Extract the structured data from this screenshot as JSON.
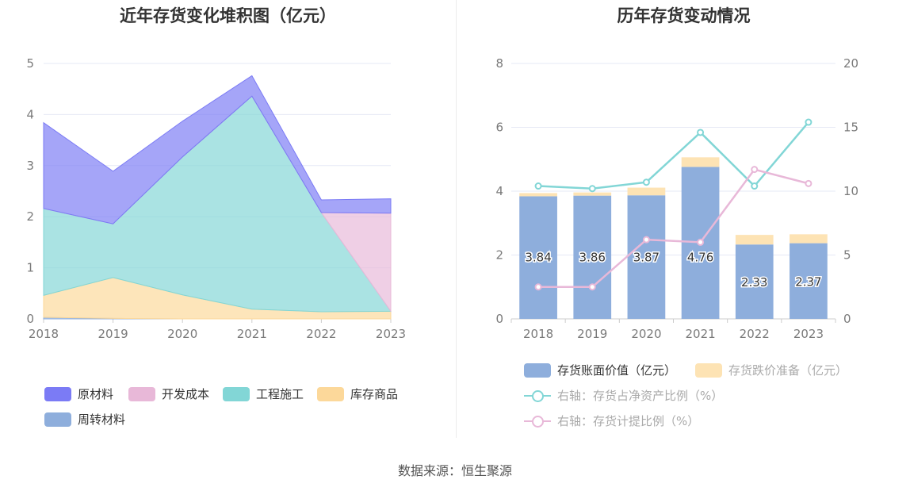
{
  "colors": {
    "raw_materials": "#7b7bf5",
    "development_cost": "#e8b8d8",
    "engineering": "#82d6d6",
    "goods": "#fcd89a",
    "turnover_materials": "#8eaedc",
    "book_value": "#8eaedc",
    "impairment": "#fde3b4",
    "net_asset_ratio_line": "#82d6d6",
    "provision_ratio_line": "#e8b8d8"
  },
  "source": "数据来源：恒生聚源",
  "chart_data": [
    {
      "type": "area",
      "title": "近年存货变化堆积图（亿元）",
      "categories": [
        "2018",
        "2019",
        "2020",
        "2021",
        "2022",
        "2023"
      ],
      "ylim": [
        0,
        5
      ],
      "yticks": [
        "0",
        "1",
        "2",
        "3",
        "4",
        "5"
      ],
      "grid": true,
      "legend_position": "bottom-left",
      "series": [
        {
          "name": "原材料",
          "values": [
            1.68,
            1.03,
            0.7,
            0.4,
            0.25,
            0.28
          ]
        },
        {
          "name": "开发成本",
          "values": [
            0.0,
            0.0,
            0.0,
            0.0,
            0.0,
            1.92
          ]
        },
        {
          "name": "工程施工",
          "values": [
            1.7,
            1.05,
            2.7,
            4.17,
            1.94,
            0.0
          ]
        },
        {
          "name": "库存商品",
          "values": [
            0.43,
            0.8,
            0.47,
            0.19,
            0.14,
            0.15
          ]
        },
        {
          "name": "周转材料",
          "values": [
            0.03,
            0.01,
            0.0,
            0.0,
            0.0,
            0.0
          ]
        }
      ]
    },
    {
      "type": "bar",
      "title": "历年存货变动情况",
      "categories": [
        "2018",
        "2019",
        "2020",
        "2021",
        "2022",
        "2023"
      ],
      "ylim": [
        0,
        8
      ],
      "yticks": [
        "0",
        "2",
        "4",
        "6",
        "8"
      ],
      "y2lim": [
        0,
        20
      ],
      "y2ticks": [
        "0",
        "5",
        "10",
        "15",
        "20"
      ],
      "grid": true,
      "legend_position": "bottom-left",
      "series": [
        {
          "name": "存货账面价值（亿元）",
          "kind": "bar",
          "values": [
            3.84,
            3.86,
            3.87,
            4.76,
            2.33,
            2.37
          ],
          "labels": [
            "3.84",
            "3.86",
            "3.87",
            "4.76",
            "2.33",
            "2.37"
          ]
        },
        {
          "name": "存货跌价准备（亿元）",
          "kind": "bar",
          "values": [
            0.1,
            0.1,
            0.24,
            0.3,
            0.3,
            0.28
          ]
        },
        {
          "name": "右轴：存货占净资产比例（%）",
          "kind": "line",
          "axis": "right",
          "values": [
            10.4,
            10.2,
            10.7,
            14.6,
            10.4,
            15.4
          ]
        },
        {
          "name": "右轴：存货计提比例（%）",
          "kind": "line",
          "axis": "right",
          "values": [
            2.5,
            2.5,
            6.2,
            6.0,
            11.7,
            10.6
          ]
        }
      ]
    }
  ]
}
